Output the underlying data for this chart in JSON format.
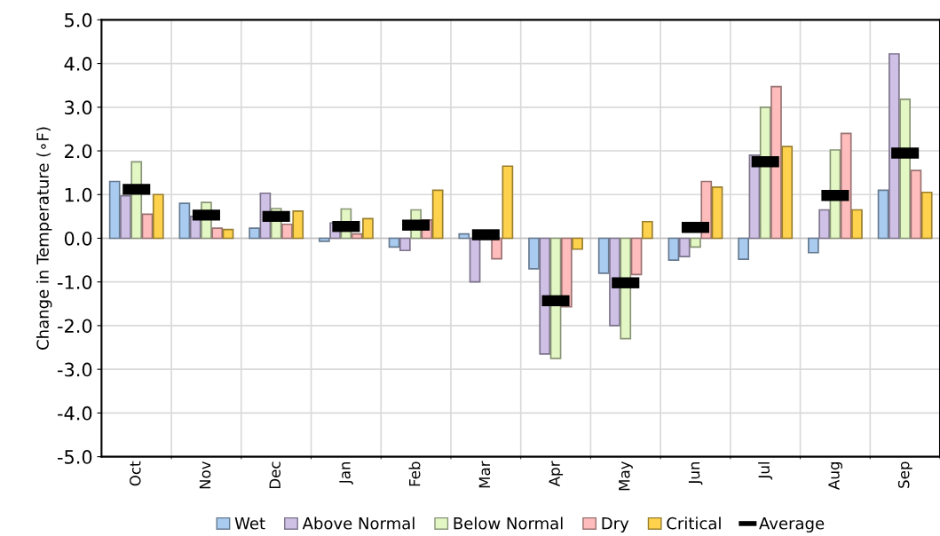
{
  "chart_data": {
    "type": "bar",
    "ylabel": "Change in Temperature (∘F)",
    "categories": [
      "Oct",
      "Nov",
      "Dec",
      "Jan",
      "Feb",
      "Mar",
      "Apr",
      "May",
      "Jun",
      "Jul",
      "Aug",
      "Sep"
    ],
    "series": [
      {
        "name": "Wet",
        "color": "#a9cbf0",
        "values": [
          1.3,
          0.8,
          0.23,
          -0.07,
          -0.2,
          0.1,
          -0.7,
          -0.8,
          -0.5,
          -0.48,
          -0.33,
          1.1
        ]
      },
      {
        "name": "Above Normal",
        "color": "#cfc0e6",
        "values": [
          0.97,
          0.5,
          1.03,
          0.35,
          -0.28,
          -1.0,
          -2.65,
          -2.0,
          -0.42,
          1.9,
          0.65,
          4.22
        ]
      },
      {
        "name": "Below Normal",
        "color": "#e3f7c4",
        "values": [
          1.75,
          0.82,
          0.68,
          0.67,
          0.65,
          null,
          -2.75,
          -2.3,
          -0.2,
          3.0,
          2.02,
          3.18
        ]
      },
      {
        "name": "Dry",
        "color": "#ffbcbc",
        "values": [
          0.55,
          0.23,
          0.32,
          0.1,
          0.42,
          -0.47,
          -1.57,
          -0.83,
          1.3,
          3.47,
          2.4,
          1.55
        ]
      },
      {
        "name": "Critical",
        "color": "#ffd24d",
        "values": [
          1.0,
          0.2,
          0.62,
          0.45,
          1.1,
          1.65,
          -0.25,
          0.38,
          1.17,
          2.1,
          0.65,
          1.05
        ]
      },
      {
        "name": "Average",
        "type": "scatter",
        "color": "#000000",
        "values": [
          1.12,
          0.53,
          0.5,
          0.27,
          0.3,
          0.08,
          -1.43,
          -1.02,
          0.25,
          1.75,
          0.98,
          1.95
        ]
      }
    ],
    "ylim": [
      -5,
      5
    ],
    "yticks": [
      {
        "value": -5,
        "label": "-5.0"
      },
      {
        "value": -4,
        "label": "-4.0"
      },
      {
        "value": -3,
        "label": "-3.0"
      },
      {
        "value": -2,
        "label": "-2.0"
      },
      {
        "value": -1,
        "label": "-1.0"
      },
      {
        "value": 0,
        "label": "0.0"
      },
      {
        "value": 1,
        "label": "1.0"
      },
      {
        "value": 2,
        "label": "2.0"
      },
      {
        "value": 3,
        "label": "3.0"
      },
      {
        "value": 4,
        "label": "4.0"
      },
      {
        "value": 5,
        "label": "5.0"
      }
    ],
    "grid": true,
    "legend": "bottom"
  }
}
